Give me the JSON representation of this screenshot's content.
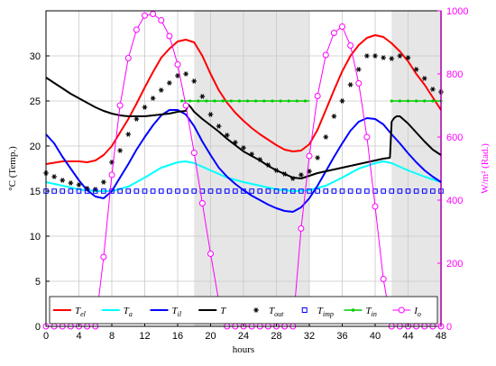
{
  "chart_data": {
    "type": "line",
    "xlabel": "hours",
    "ylabel_left": "°C (Temp.)",
    "ylabel_right": "W/m² (Rad.)",
    "x_ticks": [
      "0",
      "4",
      "8",
      "12",
      "16",
      "20",
      "24",
      "28",
      "32",
      "36",
      "40",
      "44",
      "48"
    ],
    "y_left_ticks": [
      "0",
      "5",
      "10",
      "15",
      "20",
      "25",
      "30"
    ],
    "y_right_ticks": [
      "0",
      "200",
      "400",
      "600",
      "800",
      "1000"
    ],
    "xlim": [
      0,
      48
    ],
    "ylim_left": [
      0,
      35
    ],
    "ylim_right": [
      0,
      1000
    ],
    "grid": true,
    "shaded_intervals": [
      [
        18,
        32
      ],
      [
        42,
        48
      ]
    ],
    "legend_position": "bottom",
    "colors": {
      "Tel": "#ff0000",
      "Ta": "#00ffff",
      "Til": "#0000ff",
      "T": "#000000",
      "Tout": "#000000",
      "Timp": "#0000ff",
      "Tin": "#00cc00",
      "Io": "#ff00ff",
      "shade": "#e6e6e6",
      "right_axis": "#ff00ff"
    },
    "legend": [
      {
        "key": "Tel",
        "label": "T",
        "sub": "el"
      },
      {
        "key": "Ta",
        "label": "T",
        "sub": "a"
      },
      {
        "key": "Til",
        "label": "T",
        "sub": "il"
      },
      {
        "key": "T",
        "label": "T",
        "sub": ""
      },
      {
        "key": "Tout",
        "label": "T",
        "sub": "out"
      },
      {
        "key": "Timp",
        "label": "T",
        "sub": "imp"
      },
      {
        "key": "Tin",
        "label": "T",
        "sub": "in"
      },
      {
        "key": "Io",
        "label": "I",
        "sub": "o"
      }
    ],
    "series": [
      {
        "key": "Tel",
        "axis": "left",
        "style": "line",
        "x": [
          0,
          2,
          4,
          5,
          6,
          7,
          8,
          9,
          10,
          11,
          12,
          13,
          14,
          15,
          16,
          17,
          18,
          19,
          20,
          21,
          22,
          23,
          24,
          25,
          26,
          27,
          28,
          29,
          30,
          31,
          32,
          33,
          34,
          35,
          36,
          37,
          38,
          39,
          40,
          41,
          42,
          43,
          44,
          45,
          46,
          47,
          48
        ],
        "y": [
          18,
          18.3,
          18.3,
          18.2,
          18.4,
          19,
          20,
          21.5,
          23,
          24.7,
          26.5,
          28.2,
          29.8,
          30.8,
          31.6,
          31.8,
          31.5,
          30,
          28,
          26.2,
          24.8,
          23.7,
          22.8,
          22,
          21.3,
          20.7,
          20.1,
          19.6,
          19.4,
          19.5,
          20.2,
          21.8,
          24,
          26.2,
          28.3,
          30,
          31.2,
          32,
          32.3,
          32.1,
          31.4,
          30.5,
          29.4,
          28,
          26.8,
          25.4,
          24
        ]
      },
      {
        "key": "Ta",
        "axis": "left",
        "style": "line",
        "x": [
          0,
          2,
          4,
          6,
          8,
          10,
          12,
          14,
          16,
          17,
          18,
          20,
          22,
          24,
          26,
          28,
          30,
          32,
          34,
          36,
          38,
          40,
          41,
          42,
          44,
          46,
          48
        ],
        "y": [
          16,
          15.6,
          15.2,
          15,
          15,
          15.5,
          16.5,
          17.6,
          18.2,
          18.3,
          18.1,
          17.3,
          16.5,
          16,
          15.6,
          15.2,
          15,
          15.1,
          15.6,
          16.5,
          17.5,
          18.1,
          18.3,
          18.1,
          17.3,
          16.6,
          16
        ]
      },
      {
        "key": "Til",
        "axis": "left",
        "style": "line",
        "x": [
          0,
          1,
          2,
          3,
          4,
          5,
          6,
          7,
          8,
          9,
          10,
          11,
          12,
          13,
          14,
          15,
          16,
          17,
          18,
          19,
          20,
          21,
          22,
          23,
          24,
          25,
          26,
          27,
          28,
          29,
          30,
          31,
          32,
          33,
          34,
          35,
          36,
          37,
          38,
          39,
          40,
          41,
          42,
          43,
          44,
          45,
          46,
          47,
          48
        ],
        "y": [
          21.3,
          20.3,
          18.8,
          17.5,
          16.2,
          15.1,
          14.4,
          14.2,
          15,
          16.5,
          18,
          19.6,
          21,
          22.3,
          23.4,
          24,
          24,
          23.5,
          22.2,
          20.5,
          19,
          17.6,
          16.6,
          15.8,
          15.1,
          14.5,
          14,
          13.5,
          13.1,
          12.8,
          12.7,
          13.2,
          14.2,
          15.6,
          17.2,
          18.8,
          20.3,
          21.7,
          22.7,
          23.1,
          23,
          22.4,
          21.3,
          20.3,
          19.2,
          18.2,
          17.3,
          16.6,
          16
        ]
      },
      {
        "key": "T",
        "axis": "left",
        "style": "line",
        "x": [
          0,
          1,
          2,
          3,
          4,
          5,
          6,
          7,
          8,
          9,
          10,
          11,
          12,
          13,
          14,
          15,
          16,
          17,
          17.3,
          17.6,
          18,
          19,
          20,
          21,
          22,
          23,
          24,
          25,
          26,
          27,
          28,
          29,
          30,
          31,
          32,
          33,
          34,
          35,
          36,
          37,
          38,
          39,
          40,
          41,
          41.8,
          42,
          42.3,
          42.6,
          43,
          44,
          45,
          46,
          47,
          48
        ],
        "y": [
          27.6,
          27,
          26.4,
          25.8,
          25.3,
          24.8,
          24.3,
          23.9,
          23.6,
          23.4,
          23.3,
          23.3,
          23.3,
          23.4,
          23.5,
          23.6,
          23.8,
          23.9,
          24.6,
          24.3,
          23.8,
          23,
          22.3,
          21.6,
          20.8,
          20.1,
          19.4,
          18.9,
          18.4,
          17.8,
          17.3,
          16.9,
          16.5,
          16.4,
          16.7,
          17,
          17.2,
          17.4,
          17.6,
          17.8,
          18,
          18.2,
          18.4,
          18.6,
          18.7,
          22.7,
          23.1,
          23.3,
          23.3,
          22.5,
          21.5,
          20.5,
          19.6,
          19
        ]
      },
      {
        "key": "Tout",
        "axis": "left",
        "style": "star",
        "x": [
          0,
          1,
          2,
          3,
          4,
          5,
          6,
          7,
          8,
          9,
          10,
          11,
          12,
          13,
          14,
          15,
          16,
          17,
          18,
          19,
          20,
          21,
          22,
          23,
          24,
          25,
          26,
          27,
          28,
          29,
          30,
          31,
          32,
          33,
          34,
          35,
          36,
          37,
          38,
          39,
          40,
          41,
          42,
          43,
          44,
          45,
          46,
          47,
          48
        ],
        "y": [
          17,
          16.6,
          16.2,
          15.9,
          15.7,
          15.3,
          15.2,
          16,
          18.2,
          19.5,
          21.3,
          23,
          24.3,
          25.3,
          26.2,
          27,
          27.8,
          28,
          27.2,
          25.5,
          23.5,
          22.2,
          21.2,
          20.4,
          19.8,
          19.1,
          18.5,
          17.9,
          17.3,
          16.9,
          16.4,
          16.8,
          17.2,
          18.7,
          21,
          23.3,
          25,
          26.8,
          28.5,
          30,
          30,
          29.8,
          29.7,
          30,
          29.8,
          28.5,
          27.5,
          26.3,
          26
        ]
      },
      {
        "key": "Timp",
        "axis": "left",
        "style": "square",
        "x": [
          0,
          1,
          2,
          3,
          4,
          5,
          6,
          7,
          8,
          9,
          10,
          11,
          12,
          13,
          14,
          15,
          16,
          17,
          18,
          19,
          20,
          21,
          22,
          23,
          24,
          25,
          26,
          27,
          28,
          29,
          30,
          31,
          32,
          33,
          34,
          35,
          36,
          37,
          38,
          39,
          40,
          41,
          42,
          43,
          44,
          45,
          46,
          47,
          48
        ],
        "y": [
          15,
          15,
          15,
          15,
          15,
          15,
          15,
          15,
          15,
          15,
          15,
          15,
          15,
          15,
          15,
          15,
          15,
          15,
          15,
          15,
          15,
          15,
          15,
          15,
          15,
          15,
          15,
          15,
          15,
          15,
          15,
          15,
          15,
          15,
          15,
          15,
          15,
          15,
          15,
          15,
          15,
          15,
          15,
          15,
          15,
          15,
          15,
          15,
          15
        ]
      },
      {
        "key": "Tin",
        "axis": "left",
        "style": "dotline",
        "segments": [
          [
            16.5,
            32
          ],
          [
            42,
            48
          ]
        ],
        "y": 25
      },
      {
        "key": "Io",
        "axis": "right",
        "style": "circleline",
        "x": [
          0,
          1,
          2,
          3,
          4,
          5,
          6,
          7,
          8,
          9,
          10,
          11,
          12,
          13,
          14,
          15,
          16,
          17,
          18,
          19,
          20,
          21,
          22,
          23,
          24,
          25,
          26,
          27,
          28,
          29,
          30,
          31,
          32,
          33,
          34,
          35,
          36,
          37,
          38,
          39,
          40,
          41,
          42,
          43,
          44,
          45,
          46,
          47,
          48
        ],
        "y": [
          0,
          0,
          0,
          0,
          0,
          0,
          0,
          220,
          480,
          700,
          850,
          940,
          985,
          990,
          970,
          920,
          830,
          700,
          550,
          390,
          230,
          80,
          0,
          0,
          0,
          0,
          0,
          0,
          0,
          0,
          0,
          310,
          540,
          730,
          860,
          930,
          950,
          890,
          770,
          600,
          380,
          150,
          0,
          0,
          0,
          0,
          0,
          0,
          0
        ]
      }
    ]
  }
}
